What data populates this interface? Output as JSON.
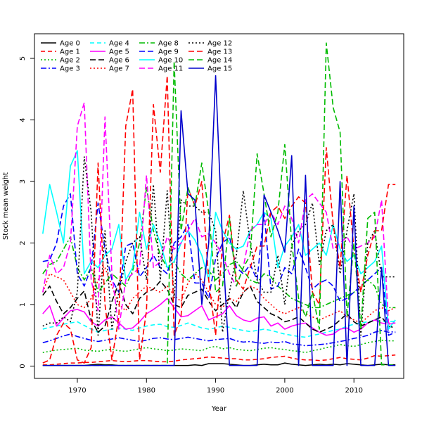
{
  "chart_data": {
    "type": "line",
    "xlabel": "Year",
    "ylabel": "Stock mean weight",
    "xlim": [
      1963.8,
      2017.2
    ],
    "ylim": [
      -0.2,
      5.4
    ],
    "x_ticks": [
      1970,
      1980,
      1990,
      2000,
      2010
    ],
    "y_ticks": [
      0,
      1,
      2,
      3,
      4,
      5
    ],
    "grid": false,
    "legend_position": "top-left",
    "legend_columns": 4,
    "x": [
      1965,
      1966,
      1967,
      1968,
      1969,
      1970,
      1971,
      1972,
      1973,
      1974,
      1975,
      1976,
      1977,
      1978,
      1979,
      1980,
      1981,
      1982,
      1983,
      1984,
      1985,
      1986,
      1987,
      1988,
      1989,
      1990,
      1991,
      1992,
      1993,
      1994,
      1995,
      1996,
      1997,
      1998,
      1999,
      2000,
      2001,
      2002,
      2003,
      2004,
      2005,
      2006,
      2007,
      2008,
      2009,
      2010,
      2011,
      2012,
      2013,
      2014,
      2015,
      2016
    ],
    "series": [
      {
        "name": "Age 0",
        "color": "#000000",
        "dash": "solid",
        "values": [
          0.01,
          0.01,
          0.01,
          0.01,
          0.01,
          0.01,
          0.01,
          0.02,
          0.03,
          0.02,
          0.02,
          0.01,
          0.01,
          0.01,
          0.01,
          0.01,
          0.01,
          0.01,
          0.01,
          0.01,
          0.01,
          0.01,
          0.02,
          0.01,
          0.04,
          0.04,
          0.04,
          0.03,
          0.02,
          0.01,
          0.01,
          0.02,
          0.03,
          0.02,
          0.02,
          0.05,
          0.03,
          0.02,
          0.01,
          0.02,
          0.03,
          0.02,
          0.03,
          0.02,
          0.04,
          0.03,
          0.02,
          0.01,
          0.02,
          0.03,
          0.02,
          0.02
        ]
      },
      {
        "name": "Age 1",
        "color": "#ff0000",
        "dash": "6,4",
        "values": [
          0.02,
          0.02,
          0.03,
          0.04,
          0.05,
          0.05,
          0.06,
          0.06,
          0.07,
          0.08,
          0.09,
          0.08,
          0.07,
          0.08,
          0.09,
          0.09,
          0.08,
          0.07,
          0.07,
          0.08,
          0.1,
          0.11,
          0.12,
          0.13,
          0.15,
          0.14,
          0.13,
          0.12,
          0.12,
          0.1,
          0.1,
          0.11,
          0.12,
          0.14,
          0.15,
          0.16,
          0.13,
          0.11,
          0.1,
          0.1,
          0.09,
          0.1,
          0.12,
          0.14,
          0.12,
          0.11,
          0.1,
          0.13,
          0.17,
          0.16,
          0.17,
          0.18
        ]
      },
      {
        "name": "Age 2",
        "color": "#00bb00",
        "dash": "2,3",
        "values": [
          0.22,
          0.24,
          0.26,
          0.27,
          0.28,
          0.29,
          0.26,
          0.25,
          0.24,
          0.26,
          0.27,
          0.25,
          0.24,
          0.26,
          0.28,
          0.3,
          0.28,
          0.27,
          0.25,
          0.26,
          0.28,
          0.27,
          0.26,
          0.25,
          0.3,
          0.32,
          0.28,
          0.3,
          0.27,
          0.26,
          0.25,
          0.27,
          0.29,
          0.3,
          0.28,
          0.27,
          0.25,
          0.24,
          0.22,
          0.25,
          0.27,
          0.3,
          0.32,
          0.35,
          0.33,
          0.32,
          0.35,
          0.38,
          0.4,
          0.42,
          0.41,
          0.41
        ]
      },
      {
        "name": "Age 3",
        "color": "#0000ff",
        "dash": "8,3,2,3",
        "values": [
          0.38,
          0.41,
          0.45,
          0.49,
          0.52,
          0.48,
          0.45,
          0.42,
          0.4,
          0.42,
          0.44,
          0.46,
          0.44,
          0.42,
          0.4,
          0.42,
          0.45,
          0.46,
          0.44,
          0.43,
          0.45,
          0.47,
          0.45,
          0.43,
          0.41,
          0.43,
          0.44,
          0.45,
          0.41,
          0.39,
          0.4,
          0.38,
          0.37,
          0.39,
          0.38,
          0.4,
          0.36,
          0.35,
          0.33,
          0.34,
          0.35,
          0.36,
          0.38,
          0.4,
          0.42,
          0.45,
          0.47,
          0.5,
          0.55,
          0.58,
          0.55,
          0.56
        ]
      },
      {
        "name": "Age 4",
        "color": "#00ffff",
        "dash": "6,4",
        "values": [
          0.6,
          0.63,
          0.65,
          0.68,
          0.7,
          0.72,
          0.66,
          0.6,
          0.55,
          0.58,
          0.6,
          0.62,
          0.6,
          0.58,
          0.62,
          0.65,
          0.67,
          0.68,
          0.64,
          0.63,
          0.66,
          0.7,
          0.66,
          0.62,
          0.6,
          0.62,
          0.65,
          0.63,
          0.6,
          0.58,
          0.56,
          0.58,
          0.6,
          0.58,
          0.55,
          0.52,
          0.5,
          0.48,
          0.47,
          0.5,
          0.52,
          0.55,
          0.58,
          0.6,
          0.65,
          0.68,
          0.7,
          0.72,
          0.74,
          0.73,
          0.72,
          0.73
        ]
      },
      {
        "name": "Age 5",
        "color": "#ff00ff",
        "dash": "solid",
        "values": [
          0.85,
          0.98,
          0.65,
          0.78,
          0.9,
          0.92,
          0.88,
          0.72,
          0.65,
          0.75,
          0.8,
          0.7,
          0.6,
          0.62,
          0.72,
          0.85,
          0.92,
          1.0,
          1.1,
          0.95,
          0.8,
          0.82,
          0.9,
          0.98,
          0.75,
          0.8,
          0.85,
          0.98,
          0.82,
          0.75,
          0.72,
          0.78,
          0.8,
          0.65,
          0.7,
          0.6,
          0.65,
          0.68,
          0.7,
          0.62,
          0.55,
          0.5,
          0.52,
          0.6,
          0.62,
          0.55,
          0.6,
          0.7,
          0.75,
          0.7,
          0.68,
          0.7
        ]
      },
      {
        "name": "Age 6",
        "color": "#000000",
        "dash": "8,4",
        "values": [
          1.15,
          1.3,
          1.05,
          0.85,
          0.95,
          1.1,
          1.22,
          0.75,
          0.55,
          0.65,
          1.05,
          1.35,
          1.0,
          0.85,
          1.1,
          1.2,
          1.25,
          1.38,
          1.25,
          1.0,
          0.95,
          1.15,
          1.2,
          1.25,
          1.05,
          0.9,
          1.0,
          1.1,
          0.95,
          1.2,
          1.3,
          1.05,
          0.95,
          0.85,
          0.8,
          0.72,
          0.75,
          0.8,
          0.7,
          0.6,
          0.55,
          0.6,
          0.65,
          0.75,
          0.85,
          0.72,
          0.65,
          0.7,
          0.75,
          0.8,
          0.65,
          0.62
        ]
      },
      {
        "name": "Age 7",
        "color": "#ff0000",
        "dash": "2,3",
        "values": [
          1.2,
          1.5,
          1.45,
          1.4,
          1.2,
          1.0,
          0.95,
          1.1,
          1.4,
          1.6,
          1.3,
          1.0,
          0.9,
          1.1,
          1.2,
          1.3,
          1.25,
          1.2,
          1.3,
          1.15,
          1.05,
          1.35,
          1.5,
          1.4,
          1.2,
          1.0,
          0.95,
          1.1,
          1.05,
          1.2,
          1.3,
          1.25,
          1.1,
          1.0,
          0.9,
          0.85,
          0.9,
          0.95,
          0.85,
          0.8,
          0.75,
          0.8,
          0.85,
          0.9,
          0.8,
          0.75,
          0.7,
          0.8,
          0.9,
          0.95,
          0.9,
          0.95
        ]
      },
      {
        "name": "Age 8",
        "color": "#00bb00",
        "dash": "8,3,2,3",
        "values": [
          1.5,
          1.65,
          1.7,
          1.9,
          2.1,
          1.6,
          1.4,
          1.6,
          1.2,
          1.35,
          1.5,
          1.4,
          1.3,
          1.55,
          2.0,
          2.9,
          2.2,
          1.8,
          1.6,
          1.7,
          1.5,
          1.4,
          1.5,
          1.6,
          1.55,
          1.4,
          1.5,
          1.65,
          1.7,
          1.55,
          1.4,
          1.35,
          1.5,
          1.45,
          1.3,
          1.2,
          1.1,
          1.05,
          1.0,
          0.95,
          0.95,
          1.0,
          1.05,
          1.1,
          1.15,
          1.2,
          1.3,
          1.4,
          1.3,
          1.0,
          0.95,
          0.95
        ]
      },
      {
        "name": "Age 9",
        "color": "#0000ff",
        "dash": "8,4",
        "values": [
          1.7,
          1.72,
          2.0,
          2.6,
          2.8,
          1.5,
          1.3,
          1.6,
          2.65,
          1.9,
          1.4,
          1.2,
          1.95,
          2.0,
          1.45,
          1.6,
          1.8,
          1.6,
          1.5,
          2.0,
          2.1,
          2.3,
          1.35,
          1.35,
          1.1,
          1.75,
          2.0,
          2.1,
          1.6,
          1.5,
          1.65,
          1.4,
          2.5,
          1.25,
          1.3,
          1.6,
          1.5,
          1.9,
          1.6,
          1.25,
          1.35,
          1.4,
          1.3,
          1.05,
          1.1,
          1.2,
          1.3,
          1.4,
          1.5,
          1.6,
          0.5,
          0.55
        ]
      },
      {
        "name": "Age 10",
        "color": "#00ffff",
        "dash": "solid",
        "values": [
          2.15,
          2.95,
          2.5,
          2.0,
          3.25,
          3.5,
          1.5,
          1.7,
          1.6,
          1.8,
          1.9,
          2.3,
          1.4,
          1.6,
          2.5,
          1.9,
          2.3,
          2.0,
          1.6,
          1.7,
          2.0,
          2.2,
          2.05,
          1.8,
          1.4,
          2.5,
          2.2,
          2.0,
          1.9,
          1.95,
          2.2,
          2.3,
          2.5,
          2.4,
          1.6,
          1.95,
          2.1,
          2.3,
          1.8,
          1.9,
          2.0,
          1.8,
          2.3,
          1.9,
          1.7,
          1.8,
          1.5,
          1.6,
          1.7,
          1.95,
          0.6,
          0.75
        ]
      },
      {
        "name": "Age 11",
        "color": "#ff00ff",
        "dash": "8,4",
        "values": [
          1.2,
          1.8,
          1.5,
          1.6,
          2.0,
          3.9,
          4.28,
          1.4,
          0.9,
          4.05,
          1.5,
          0.6,
          1.4,
          1.5,
          1.6,
          3.1,
          1.6,
          1.7,
          2.1,
          1.9,
          2.0,
          2.2,
          2.4,
          2.1,
          2.15,
          2.0,
          1.8,
          1.5,
          1.3,
          1.6,
          2.2,
          2.3,
          2.3,
          2.5,
          2.3,
          2.6,
          2.4,
          2.0,
          2.7,
          2.8,
          2.65,
          2.5,
          1.9,
          2.0,
          2.1,
          1.9,
          1.95,
          2.0,
          2.1,
          2.7,
          0.7,
          0.7
        ]
      },
      {
        "name": "Age 12",
        "color": "#000000",
        "dash": "2,3",
        "values": [
          0.65,
          0.7,
          0.7,
          0.8,
          0.72,
          1.2,
          3.4,
          2.5,
          0.5,
          2.2,
          0.6,
          1.2,
          1.7,
          2.0,
          2.1,
          1.4,
          2.95,
          1.4,
          2.85,
          1.1,
          2.7,
          2.6,
          2.6,
          2.5,
          2.5,
          2.2,
          0.55,
          1.2,
          1.8,
          2.85,
          2.0,
          1.4,
          1.2,
          1.2,
          1.8,
          1.0,
          1.95,
          2.2,
          2.3,
          2.65,
          1.65,
          2.2,
          2.3,
          1.5,
          2.2,
          2.8,
          0.5,
          2.0,
          2.2,
          1.45,
          1.45,
          1.45
        ]
      },
      {
        "name": "Age 13",
        "color": "#ff0000",
        "dash": "8,4",
        "values": [
          0.05,
          0.1,
          0.5,
          0.7,
          0.6,
          0.1,
          0.05,
          0.3,
          3.3,
          1.0,
          0.1,
          0.8,
          3.9,
          4.5,
          0.1,
          0.9,
          4.25,
          3.15,
          4.72,
          0.5,
          0.8,
          2.9,
          2.6,
          3.0,
          1.4,
          0.5,
          2.0,
          2.45,
          1.4,
          1.25,
          1.6,
          1.95,
          1.95,
          2.5,
          2.6,
          2.4,
          2.6,
          2.75,
          2.65,
          1.2,
          1.0,
          3.55,
          2.3,
          1.6,
          3.1,
          1.9,
          1.2,
          1.8,
          2.2,
          2.2,
          2.95,
          2.95
        ]
      },
      {
        "name": "Age 14",
        "color": "#00bb00",
        "dash": "8,4",
        "values": [
          0.01,
          0.01,
          0.01,
          0.01,
          0.01,
          0.01,
          0.01,
          0.01,
          0.01,
          0.01,
          0.01,
          0.01,
          0.01,
          0.01,
          0.01,
          0.01,
          0.01,
          0.01,
          0.01,
          4.95,
          2.2,
          2.9,
          2.6,
          3.3,
          2.5,
          1.2,
          1.3,
          2.4,
          1.3,
          1.6,
          1.8,
          3.45,
          2.8,
          2.1,
          2.5,
          3.6,
          2.0,
          1.1,
          0.8,
          1.2,
          0.6,
          5.25,
          4.2,
          3.8,
          0.8,
          2.0,
          0.6,
          2.4,
          2.5,
          0.02,
          0.02,
          0.02
        ]
      },
      {
        "name": "Age 15",
        "color": "#0000cc",
        "dash": "solid",
        "values": [
          0.01,
          0.01,
          0.01,
          0.01,
          0.01,
          0.01,
          0.01,
          0.01,
          0.01,
          0.01,
          0.01,
          0.01,
          0.01,
          0.01,
          0.01,
          0.01,
          0.01,
          0.01,
          0.01,
          0.01,
          4.15,
          2.8,
          2.7,
          1.0,
          2.0,
          4.72,
          2.0,
          0.01,
          0.01,
          0.01,
          0.01,
          0.01,
          2.78,
          2.5,
          2.2,
          1.85,
          3.42,
          0.01,
          3.1,
          0.01,
          0.01,
          0.01,
          0.01,
          3.0,
          0.01,
          2.6,
          0.01,
          0.01,
          0.01,
          1.6,
          0.01,
          0.01
        ]
      }
    ]
  }
}
